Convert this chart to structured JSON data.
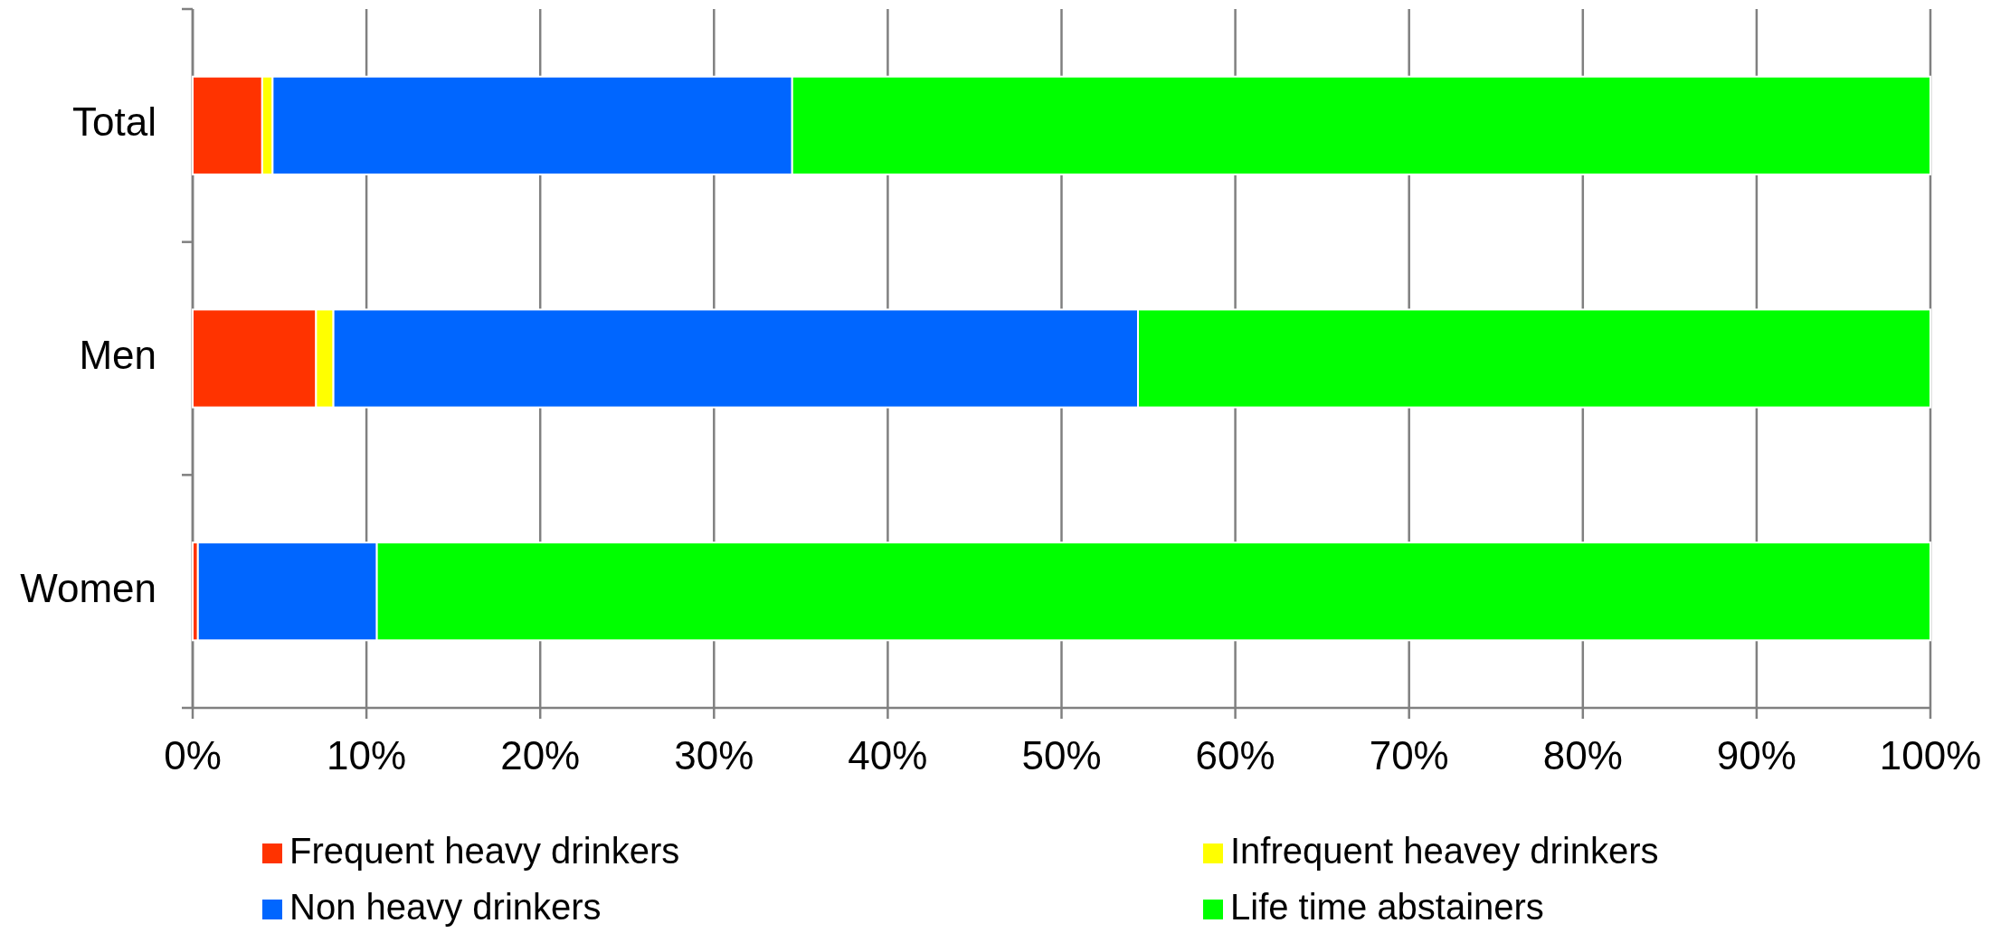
{
  "chart_data": {
    "type": "bar",
    "orientation": "horizontal",
    "stacked": true,
    "categories": [
      "Total",
      "Men",
      "Women"
    ],
    "series": [
      {
        "name": "Frequent heavy drinkers",
        "color": "#ff3300",
        "values": [
          4.0,
          7.1,
          0.3
        ]
      },
      {
        "name": "Infrequent heavey drinkers",
        "color": "#ffff00",
        "values": [
          0.6,
          1.0,
          null
        ]
      },
      {
        "name": "Non heavy drinkers",
        "color": "#0066ff",
        "values": [
          29.9,
          46.3,
          10.3
        ]
      },
      {
        "name": "Life time abstainers",
        "color": "#00ff00",
        "values": [
          65.5,
          45.6,
          89.4
        ]
      }
    ],
    "xlim": [
      0,
      100
    ],
    "xticks": [
      {
        "value": 0,
        "label": "0%"
      },
      {
        "value": 10,
        "label": "10%"
      },
      {
        "value": 20,
        "label": "20%"
      },
      {
        "value": 30,
        "label": "30%"
      },
      {
        "value": 40,
        "label": "40%"
      },
      {
        "value": 50,
        "label": "50%"
      },
      {
        "value": 60,
        "label": "60%"
      },
      {
        "value": 70,
        "label": "70%"
      },
      {
        "value": 80,
        "label": "80%"
      },
      {
        "value": 90,
        "label": "90%"
      },
      {
        "value": 100,
        "label": "100%"
      }
    ],
    "grid": "x",
    "legend": "bottom"
  }
}
